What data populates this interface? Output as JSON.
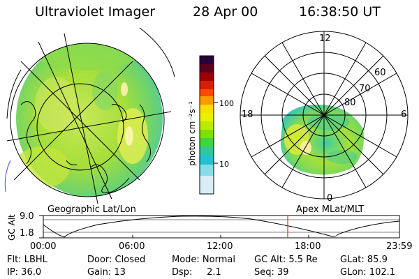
{
  "header": {
    "instrument": "Ultraviolet Imager",
    "date": "28 Apr 00",
    "time": "16:38:50 UT"
  },
  "colorbar": {
    "units": "photon cm⁻²s⁻¹",
    "ticks": [
      "100",
      "10"
    ],
    "colors": [
      "#2a003a",
      "#5a0020",
      "#9c0000",
      "#d22000",
      "#ff4a00",
      "#ff9900",
      "#ffdd00",
      "#e8f000",
      "#b8ec00",
      "#7ce000",
      "#3ed63a",
      "#2fc89a",
      "#22c2d0",
      "#88dcea",
      "#d8eef4"
    ]
  },
  "left_map": {
    "label": "Geographic Lat/Lon"
  },
  "right_map": {
    "label": "Apex MLat/MLT",
    "mlt_labels": [
      "12",
      "18",
      "6",
      "0"
    ],
    "lat_labels": [
      "80",
      "70",
      "60"
    ]
  },
  "altitude_plot": {
    "ylabel": "GC Alt",
    "yticks": [
      "9.0",
      "1.8"
    ],
    "xticks": [
      "00:00",
      "06:00",
      "12:00",
      "18:00",
      "23:59"
    ],
    "current_time_fraction": 0.694
  },
  "status": {
    "row1": [
      "Flt: LBHL",
      "Door: Closed",
      "Mode: Normal",
      "GC Alt: 5.5 Re",
      "GLat: 85.9"
    ],
    "row2": [
      "IP: 36.0",
      "Gain: 13",
      "Dsp:     2.1",
      "Seq: 39",
      "GLon: 102.1"
    ]
  }
}
